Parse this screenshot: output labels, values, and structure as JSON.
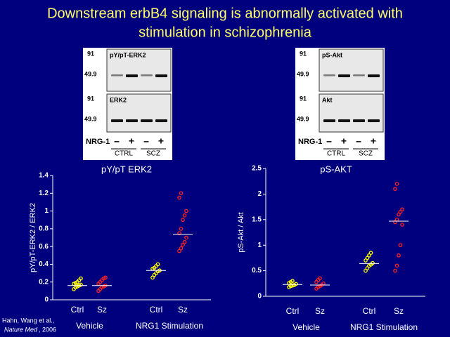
{
  "title": [
    "Downstream erbB4 signaling is abnormally activated with",
    "stimulation in schizophrenia"
  ],
  "blots": [
    {
      "panels": [
        {
          "label": "pY/pT-ERK2",
          "markers": [
            "91",
            "49.9"
          ]
        },
        {
          "label": "ERK2",
          "markers": [
            "91",
            "49.9"
          ]
        }
      ],
      "treatment": "NRG-1",
      "signs": [
        "–",
        "+",
        "–",
        "+"
      ],
      "groups": [
        "CTRL",
        "SCZ"
      ]
    },
    {
      "panels": [
        {
          "label": "pS-Akt",
          "markers": [
            "91",
            "49.9"
          ]
        },
        {
          "label": "Akt",
          "markers": [
            "91",
            "49.9"
          ]
        }
      ],
      "treatment": "NRG-1",
      "signs": [
        "–",
        "+",
        "–",
        "+"
      ],
      "groups": [
        "CTRL",
        "SCZ"
      ]
    }
  ],
  "citation": {
    "authors": "Hahn, Wang et al.,",
    "journal": "Nature Med",
    "year": ", 2006"
  },
  "chart_data": [
    {
      "type": "strip",
      "title": "pY/pT ERK2",
      "ylabel": "pY/pT-ERK2 / ERK2",
      "categories": [
        "Ctrl",
        "Sz",
        "Ctrl",
        "Sz"
      ],
      "groups": [
        "Vehicle",
        "NRG1 Stimulation"
      ],
      "colors": [
        "#ffff00",
        "#ff2020",
        "#ffff00",
        "#ff2020"
      ],
      "points": [
        [
          0.12,
          0.14,
          0.15,
          0.16,
          0.17,
          0.18,
          0.19,
          0.2,
          0.22,
          0.24
        ],
        [
          0.1,
          0.12,
          0.14,
          0.15,
          0.16,
          0.18,
          0.2,
          0.22,
          0.24,
          0.25
        ],
        [
          0.25,
          0.28,
          0.3,
          0.32,
          0.33,
          0.35,
          0.36,
          0.38,
          0.4
        ],
        [
          0.55,
          0.58,
          0.62,
          0.65,
          0.7,
          0.75,
          0.8,
          0.9,
          0.95,
          1,
          1.15,
          1.2
        ]
      ],
      "means": [
        0.16,
        0.16,
        0.33,
        0.74
      ],
      "ylim": [
        0,
        1.4
      ],
      "yticks": [
        0,
        0.2,
        0.4,
        0.6,
        0.8,
        1,
        1.2,
        1.4
      ]
    },
    {
      "type": "strip",
      "title": "pS-AKT",
      "ylabel": "pS-Akt / Akt",
      "categories": [
        "Ctrl",
        "Sz",
        "Ctrl",
        "Sz"
      ],
      "groups": [
        "Vehicle",
        "NRG1 Stimulation"
      ],
      "colors": [
        "#ffff00",
        "#ff2020",
        "#ffff00",
        "#ff2020"
      ],
      "points": [
        [
          0.18,
          0.2,
          0.21,
          0.22,
          0.24,
          0.26,
          0.28,
          0.3
        ],
        [
          0.15,
          0.18,
          0.2,
          0.22,
          0.25,
          0.28,
          0.32,
          0.35
        ],
        [
          0.5,
          0.55,
          0.6,
          0.62,
          0.65,
          0.7,
          0.75,
          0.8,
          0.85
        ],
        [
          0.5,
          0.6,
          0.8,
          1.0,
          1.4,
          1.45,
          1.5,
          1.6,
          1.65,
          1.7,
          2.1,
          2.2
        ]
      ],
      "means": [
        0.23,
        0.22,
        0.64,
        1.47
      ],
      "ylim": [
        0,
        2.5
      ],
      "yticks": [
        0,
        0.5,
        1,
        1.5,
        2,
        2.5
      ]
    }
  ]
}
